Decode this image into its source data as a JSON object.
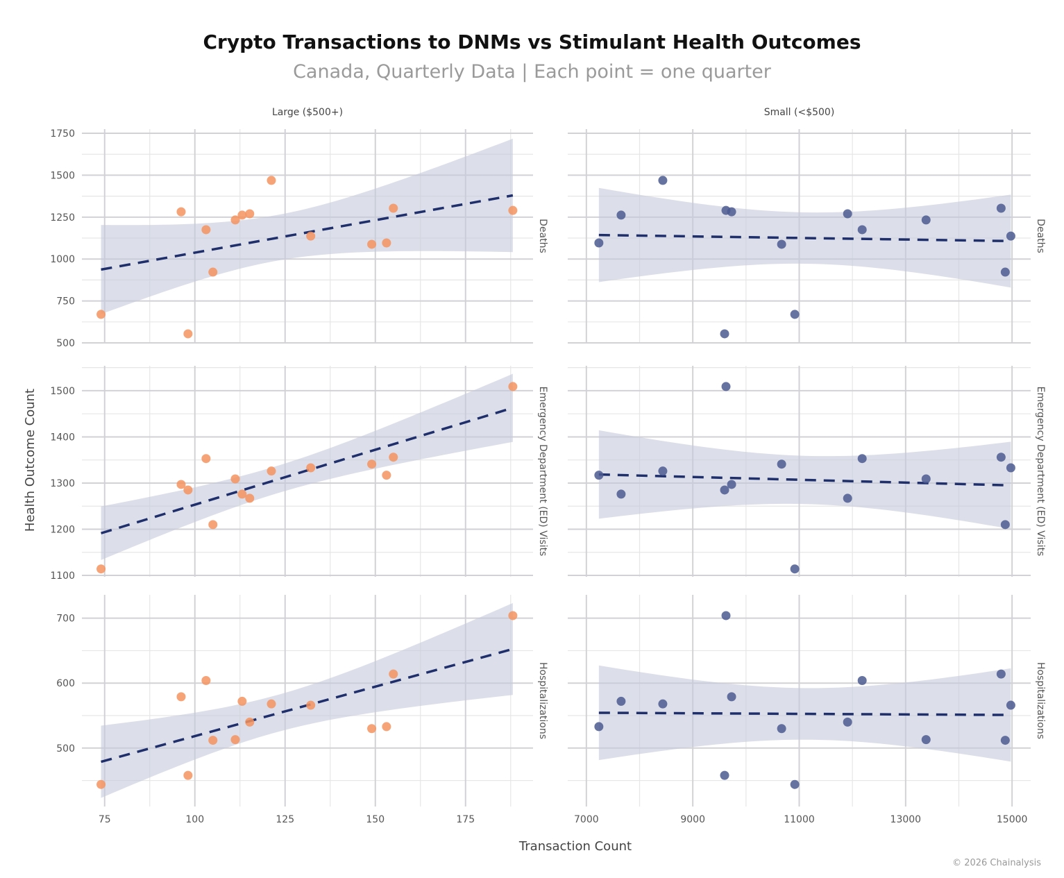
{
  "chart_data": {
    "type": "scatter",
    "title": "Crypto Transactions to DNMs vs Stimulant Health Outcomes",
    "subtitle": "Canada, Quarterly Data | Each point = one quarter",
    "xlabel": "Transaction Count",
    "ylabel": "Health Outcome Count",
    "credit": "© 2026 Chainalysis",
    "grid": true,
    "trend": "linear fit, dashed, with 95% confidence band",
    "colors": {
      "large": "#F4935F",
      "small": "#4B5B91",
      "line": "#1F2F6B",
      "band": "#C5CADB"
    },
    "columns": [
      {
        "label": "Large ($500+)",
        "key": "large",
        "xlim": [
          68.7,
          193.7
        ],
        "xticks": [
          75,
          100,
          125,
          150,
          175
        ]
      },
      {
        "label": "Small (<$500)",
        "key": "small",
        "xlim": [
          6650,
          15350
        ],
        "xticks": [
          7000,
          9000,
          11000,
          13000,
          15000
        ]
      }
    ],
    "rows": [
      {
        "label": "Deaths",
        "ylim": [
          500,
          1775
        ],
        "yticks": [
          500,
          750,
          1000,
          1250,
          1500,
          1750
        ]
      },
      {
        "label": "Emergency Department (ED) Visits",
        "ylim": [
          1097,
          1554
        ],
        "yticks": [
          1100,
          1200,
          1300,
          1400,
          1500
        ]
      },
      {
        "label": "Hospitalizations",
        "ylim": [
          410,
          736
        ],
        "yticks": [
          500,
          600,
          700
        ]
      }
    ],
    "large_x": [
      74.0,
      96.2,
      98.1,
      103.1,
      105.0,
      111.2,
      113.1,
      115.2,
      121.2,
      132.1,
      149.0,
      153.1,
      155.0,
      188.1
    ],
    "small_x": [
      10917,
      9729,
      9598,
      12183,
      14872,
      13384,
      7653,
      11909,
      8436,
      14977,
      10669,
      7235,
      14794,
      9624
    ],
    "outcomes": {
      "Deaths": [
        670,
        1282,
        554,
        1175,
        922,
        1233,
        1262,
        1270,
        1469,
        1137,
        1088,
        1096,
        1303,
        1290
      ],
      "Emergency Department (ED) Visits": [
        1114,
        1297,
        1285,
        1353,
        1210,
        1309,
        1276,
        1267,
        1326,
        1333,
        1341,
        1317,
        1356,
        1509
      ],
      "Hospitalizations": [
        444,
        579,
        458,
        604,
        512,
        513,
        572,
        540,
        568,
        566,
        530,
        533,
        614,
        704
      ]
    }
  }
}
